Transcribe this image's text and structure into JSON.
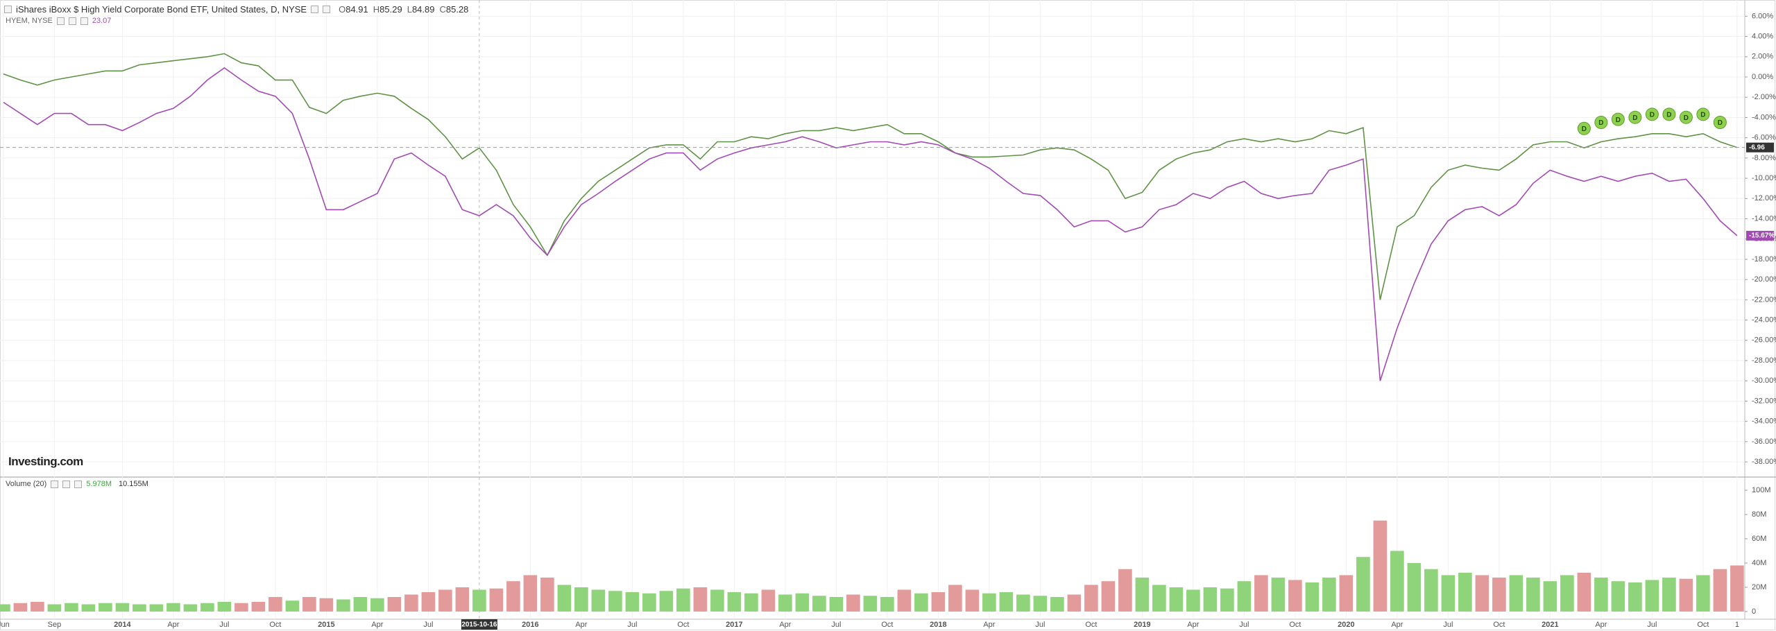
{
  "chart_data": {
    "type": "line",
    "categories": [
      "Jun",
      null,
      null,
      "Sep",
      null,
      null,
      null,
      "2014",
      null,
      null,
      "Apr",
      null,
      null,
      "Jul",
      null,
      null,
      "Oct",
      null,
      null,
      "2015",
      null,
      null,
      "Apr",
      null,
      null,
      "Jul",
      null,
      null,
      "2015-10-16",
      null,
      null,
      "2016",
      null,
      null,
      "Apr",
      null,
      null,
      "Jul",
      null,
      null,
      "Oct",
      null,
      null,
      "2017",
      null,
      null,
      "Apr",
      null,
      null,
      "Jul",
      null,
      null,
      "Oct",
      null,
      null,
      "2018",
      null,
      null,
      "Apr",
      null,
      null,
      "Jul",
      null,
      null,
      "Oct",
      null,
      null,
      "2019",
      null,
      null,
      "Apr",
      null,
      null,
      "Jul",
      null,
      null,
      "Oct",
      null,
      null,
      "2020",
      null,
      null,
      "Apr",
      null,
      null,
      "Jul",
      null,
      null,
      "Oct",
      null,
      null,
      "2021",
      null,
      null,
      "Apr",
      null,
      null,
      "Jul",
      null,
      null,
      "Oct",
      null,
      "1"
    ],
    "highlighted_category": "2015-10-16",
    "series": [
      {
        "name": "iShares iBoxx $ High Yield Corporate Bond ETF, United States, D, NYSE",
        "color": "#5f9245",
        "ohlc_labels": [
          "O",
          "H",
          "L",
          "C"
        ],
        "ohlc": [
          84.91,
          85.29,
          84.89,
          85.28
        ],
        "last_label": {
          "value": -6.96,
          "label": "-6.96"
        },
        "values": [
          0.3,
          -0.3,
          -0.8,
          -0.3,
          0,
          0.3,
          0.6,
          0.6,
          1.2,
          1.4,
          1.6,
          1.8,
          2.0,
          2.3,
          1.4,
          1.1,
          -0.3,
          -0.3,
          -3,
          -3.6,
          -2.3,
          -1.9,
          -1.6,
          -1.9,
          -3.1,
          -4.2,
          -5.9,
          -8.1,
          -7,
          -9.2,
          -12.6,
          -14.8,
          -17.6,
          -14.2,
          -12,
          -10.3,
          -9.2,
          -8.1,
          -7,
          -6.7,
          -6.7,
          -8.1,
          -6.4,
          -6.4,
          -5.9,
          -6.1,
          -5.6,
          -5.3,
          -5.3,
          -5,
          -5.3,
          -5,
          -4.7,
          -5.6,
          -5.6,
          -6.4,
          -7.5,
          -7.9,
          -7.9,
          -7.8,
          -7.7,
          -7.2,
          -7,
          -7.2,
          -8.1,
          -9.2,
          -12,
          -11.4,
          -9.2,
          -8.1,
          -7.5,
          -7.2,
          -6.4,
          -6.1,
          -6.4,
          -6.1,
          -6.4,
          -6.1,
          -5.3,
          -5.6,
          -5,
          -22,
          -14.8,
          -13.7,
          -10.9,
          -9.2,
          -8.7,
          -9,
          -9.2,
          -8.1,
          -6.7,
          -6.4,
          -6.4,
          -7,
          -6.4,
          -6.1,
          -5.9,
          -5.6,
          -5.6,
          -5.9,
          -5.6,
          -6.4,
          -6.96
        ]
      },
      {
        "name": "HYEM, NYSE",
        "color": "#a24ab3",
        "last_price": 23.07,
        "last_label": {
          "value": -15.67,
          "label": "-15.67%"
        },
        "values": [
          -2.5,
          -3.6,
          -4.7,
          -3.6,
          -3.6,
          -4.7,
          -4.7,
          -5.3,
          -4.5,
          -3.6,
          -3.1,
          -1.9,
          -0.3,
          0.9,
          -0.3,
          -1.4,
          -1.9,
          -3.6,
          -8.1,
          -13.1,
          -13.1,
          -12.3,
          -11.5,
          -8.1,
          -7.5,
          -8.7,
          -9.8,
          -13.1,
          -13.7,
          -12.6,
          -13.7,
          -15.9,
          -17.6,
          -14.8,
          -12.6,
          -11.5,
          -10.3,
          -9.2,
          -8.1,
          -7.5,
          -7.5,
          -9.2,
          -8.1,
          -7.5,
          -7,
          -6.7,
          -6.4,
          -5.9,
          -6.4,
          -7,
          -6.7,
          -6.4,
          -6.4,
          -6.7,
          -6.4,
          -6.7,
          -7.5,
          -8.1,
          -9,
          -10.3,
          -11.5,
          -11.7,
          -13.1,
          -14.8,
          -14.2,
          -14.2,
          -15.3,
          -14.8,
          -13.1,
          -12.6,
          -11.5,
          -12,
          -10.9,
          -10.3,
          -11.5,
          -12,
          -11.7,
          -11.5,
          -9.2,
          -8.7,
          -8.1,
          -30,
          -24.8,
          -20.4,
          -16.5,
          -14.2,
          -13.1,
          -12.8,
          -13.7,
          -12.6,
          -10.5,
          -9.2,
          -9.8,
          -10.3,
          -9.8,
          -10.3,
          -9.8,
          -9.5,
          -10.3,
          -10.1,
          -12,
          -14.2,
          -15.67
        ]
      }
    ],
    "dividend_markers": [
      "D",
      "D",
      "D",
      "D",
      "D",
      "D",
      "D",
      "D",
      "D"
    ],
    "dividend_color": "#8fd14f",
    "ylim": [
      -39.5,
      7.6
    ],
    "yticks": [
      {
        "value": 6,
        "label": "6.00%"
      },
      {
        "value": 4,
        "label": "4.00%"
      },
      {
        "value": 2,
        "label": "2.00%"
      },
      {
        "value": 0,
        "label": "0.00%"
      },
      {
        "value": -2,
        "label": "-2.00%"
      },
      {
        "value": -4,
        "label": "-4.00%"
      },
      {
        "value": -6,
        "label": "-6.00%"
      },
      {
        "value": -8,
        "label": "-8.00%"
      },
      {
        "value": -10,
        "label": "-10.00%"
      },
      {
        "value": -12,
        "label": "-12.00%"
      },
      {
        "value": -14,
        "label": "-14.00%"
      },
      {
        "value": -16,
        "label": "-16.00%"
      },
      {
        "value": -18,
        "label": "-18.00%"
      },
      {
        "value": -20,
        "label": "-20.00%"
      },
      {
        "value": -22,
        "label": "-22.00%"
      },
      {
        "value": -24,
        "label": "-24.00%"
      },
      {
        "value": -26,
        "label": "-26.00%"
      },
      {
        "value": -28,
        "label": "-28.00%"
      },
      {
        "value": -30,
        "label": "-30.00%"
      },
      {
        "value": -32,
        "label": "-32.00%"
      },
      {
        "value": -34,
        "label": "-34.00%"
      },
      {
        "value": -36,
        "label": "-36.00%"
      },
      {
        "value": -38,
        "label": "-38.00%"
      }
    ],
    "grid": true,
    "watermark": "Investing.com",
    "volume": {
      "title": "Volume (20)",
      "readings": [
        {
          "value": 5.978,
          "label": "5.978M",
          "color": "#3aa63a"
        },
        {
          "value": 10.155,
          "label": "10.155M",
          "color": "#333333"
        }
      ],
      "up_color": "#8fd47a",
      "down_color": "#e39a9a",
      "ylim": [
        -4.6,
        109.7
      ],
      "yticks": [
        0,
        {
          "value": 20,
          "label": "20M"
        },
        {
          "value": 40,
          "label": "40M"
        },
        {
          "value": 60,
          "label": "60M"
        },
        {
          "value": 80,
          "label": "80M"
        },
        {
          "value": 100,
          "label": "100M"
        }
      ],
      "values": [
        6,
        7,
        8,
        6,
        7,
        6,
        7,
        7,
        6,
        6,
        7,
        6,
        7,
        8,
        7,
        8,
        12,
        9,
        12,
        11,
        10,
        12,
        11,
        12,
        14,
        16,
        18,
        20,
        18,
        19,
        25,
        30,
        28,
        22,
        20,
        18,
        17,
        16,
        15,
        17,
        19,
        20,
        18,
        16,
        15,
        18,
        14,
        15,
        13,
        12,
        14,
        13,
        12,
        18,
        15,
        16,
        22,
        18,
        15,
        16,
        14,
        13,
        12,
        14,
        22,
        25,
        35,
        28,
        22,
        20,
        18,
        20,
        19,
        25,
        30,
        28,
        26,
        24,
        28,
        30,
        45,
        75,
        50,
        40,
        35,
        30,
        32,
        30,
        28,
        30,
        28,
        25,
        30,
        32,
        28,
        25,
        24,
        26,
        28,
        27,
        30,
        35,
        38
      ]
    }
  }
}
